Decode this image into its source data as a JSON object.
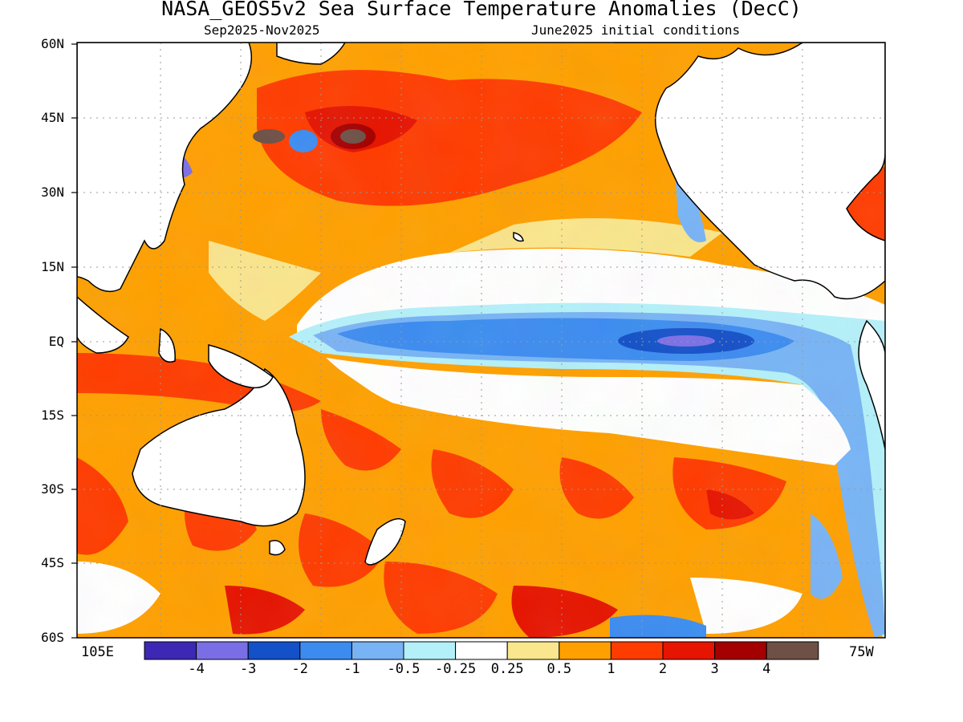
{
  "title": "NASA_GEOS5v2 Sea Surface Temperature Anomalies (DecC)",
  "period": "Sep2025-Nov2025",
  "initial_conditions": "June2025 initial conditions",
  "lat_labels": [
    "60N",
    "45N",
    "30N",
    "15N",
    "EQ",
    "15S",
    "30S",
    "45S",
    "60S"
  ],
  "lon_left": "105E",
  "lon_right": "75W",
  "colorbar": {
    "colors": [
      "#3c28b4",
      "#7a6ee6",
      "#1450c8",
      "#3c8cf0",
      "#78b4f5",
      "#b4f0fa",
      "#ffffff",
      "#fae68c",
      "#ffa000",
      "#ff3c00",
      "#e61400",
      "#a50000",
      "#6e5046"
    ],
    "labels": [
      "-4",
      "-3",
      "-2",
      "-1",
      "-0.5",
      "-0.25",
      "0.25",
      "0.5",
      "1",
      "2",
      "3",
      "4"
    ]
  }
}
